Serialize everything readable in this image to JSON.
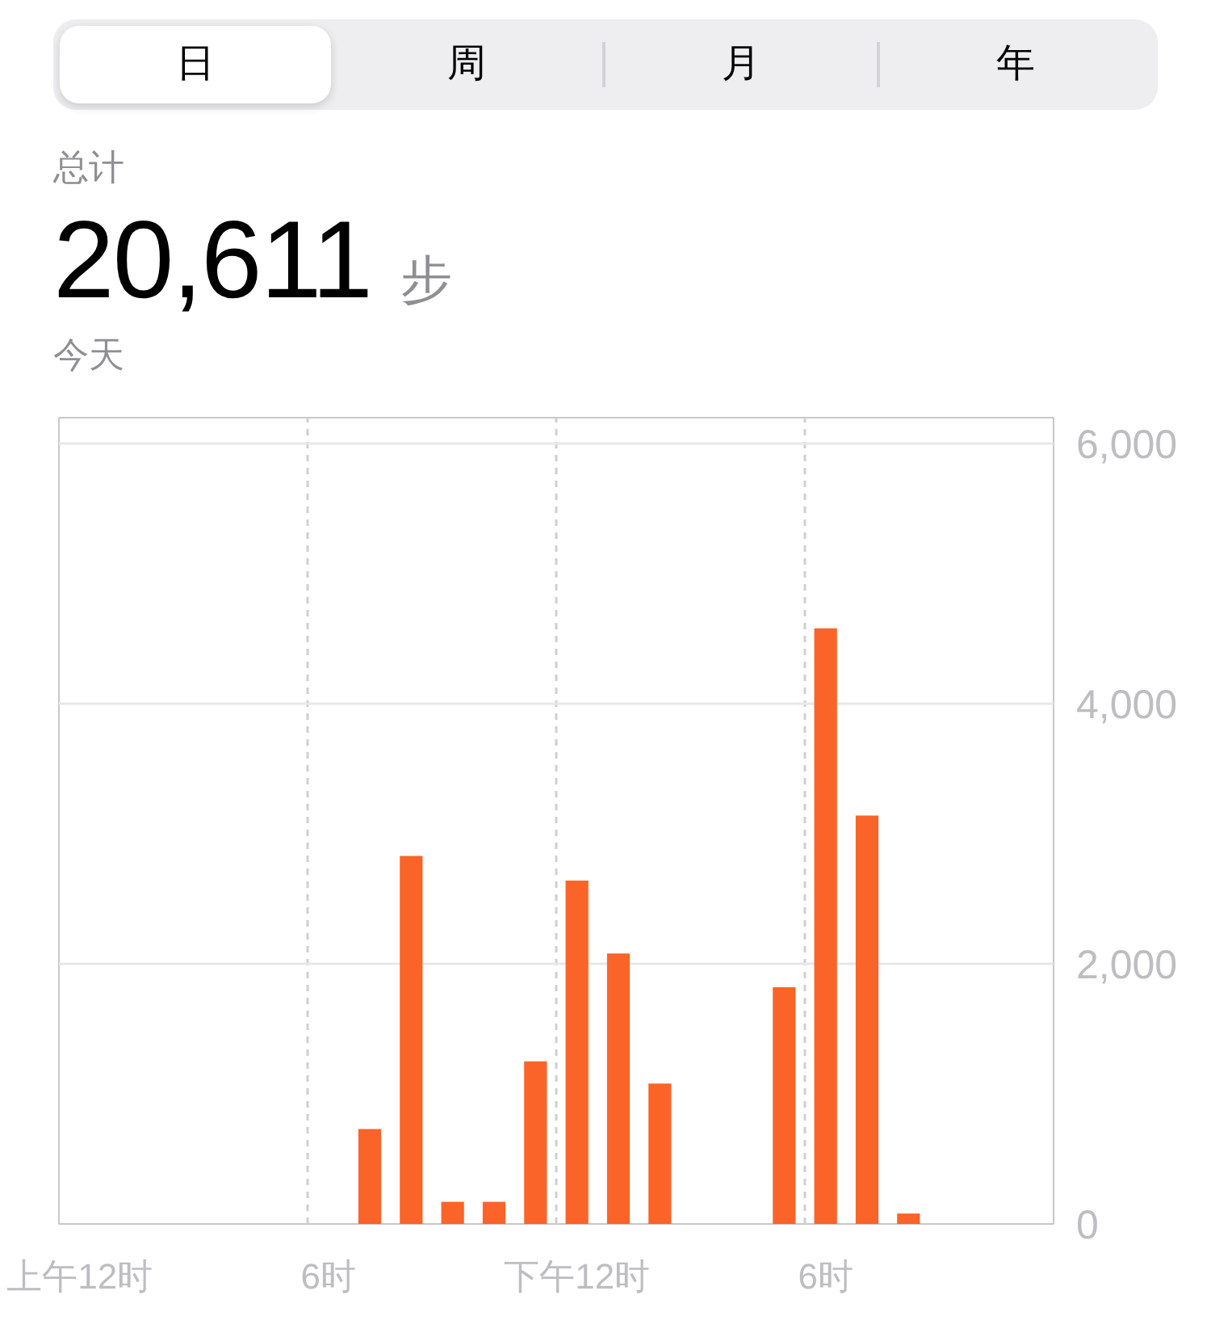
{
  "chart_data": {
    "type": "bar",
    "title": "20,611 步",
    "subtitle": "今天",
    "annotations": [
      "日",
      "周",
      "月",
      "年",
      "总计"
    ],
    "categories": [
      "上午12时",
      null,
      null,
      null,
      null,
      null,
      "6时",
      null,
      null,
      null,
      null,
      null,
      "下午12时",
      null,
      null,
      null,
      null,
      null,
      "6时",
      null,
      null,
      null,
      null,
      null
    ],
    "values": [
      null,
      null,
      null,
      null,
      null,
      null,
      null,
      730,
      2830,
      170,
      170,
      1250,
      2640,
      2080,
      1080,
      null,
      null,
      1820,
      4580,
      3140,
      80,
      null,
      null,
      null
    ],
    "color": "#fa6428",
    "ylim": [
      0,
      6200
    ],
    "yticks": [
      0,
      {
        "value": 2000,
        "label": "2,000"
      },
      {
        "value": 4000,
        "label": "4,000"
      },
      {
        "value": 6000,
        "label": "6,000"
      }
    ],
    "grid": true
  }
}
